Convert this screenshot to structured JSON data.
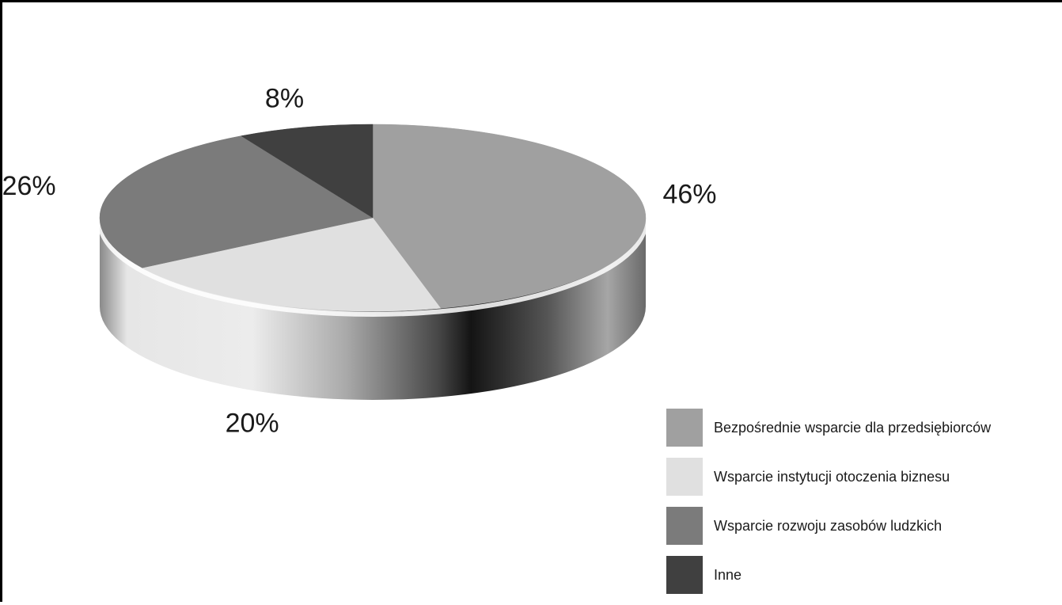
{
  "chart_data": {
    "type": "pie",
    "three_d": true,
    "start_angle_deg": 90,
    "direction": "clockwise",
    "slices": [
      {
        "label": "Bezpośrednie wsparcie dla przedsiębiorców",
        "value": 46,
        "value_label": "46%",
        "color": "#a0a0a0"
      },
      {
        "label": "Wsparcie instytucji otoczenia biznesu",
        "value": 20,
        "value_label": "20%",
        "color": "#e0e0e0"
      },
      {
        "label": "Wsparcie rozwoju zasobów ludzkich",
        "value": 26,
        "value_label": "26%",
        "color": "#7b7b7b"
      },
      {
        "label": "Inne",
        "value": 8,
        "value_label": "8%",
        "color": "#404040"
      }
    ],
    "legend_position": "bottom-right"
  }
}
